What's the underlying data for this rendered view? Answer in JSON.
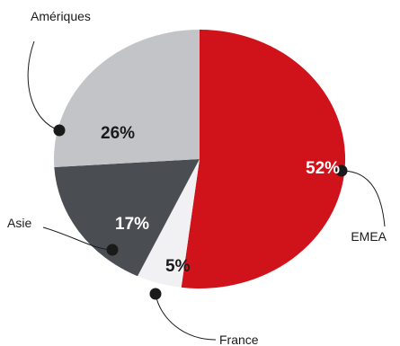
{
  "chart_data": {
    "type": "pie",
    "slices": [
      {
        "label": "EMEA",
        "value": 52,
        "value_label": "52%",
        "color": "#d0121b",
        "label_color": "#ffffff"
      },
      {
        "label": "France",
        "value": 5,
        "value_label": "5%",
        "color": "#f1f1f3",
        "label_color": "#1a1a1a"
      },
      {
        "label": "Asie",
        "value": 17,
        "value_label": "17%",
        "color": "#4a4e52",
        "label_color": "#ffffff"
      },
      {
        "label": "Amériques",
        "value": 26,
        "value_label": "26%",
        "color": "#c2c4c8",
        "label_color": "#1a1a1a"
      }
    ],
    "start_position": "top",
    "direction": "clockwise"
  }
}
